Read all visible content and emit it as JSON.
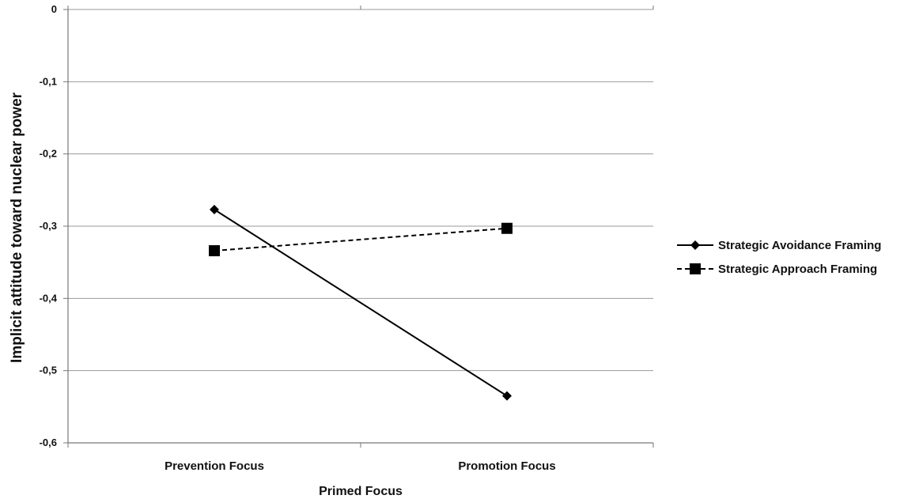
{
  "chart_data": {
    "type": "line",
    "title": "",
    "xlabel": "Primed Focus",
    "ylabel": "Implicit attitude toward nuclear power",
    "categories": [
      "Prevention Focus",
      "Promotion Focus"
    ],
    "ylim": [
      -0.6,
      0
    ],
    "yticks": [
      0,
      -0.1,
      -0.2,
      -0.3,
      -0.4,
      -0.5,
      -0.6
    ],
    "ytick_labels": [
      "0",
      "-0,1",
      "-0,2",
      "-0,3",
      "-0,4",
      "-0,5",
      "-0,6"
    ],
    "grid": "horizontal",
    "legend_position": "right",
    "series": [
      {
        "name": "Strategic Avoidance Framing",
        "values": [
          -0.277,
          -0.535
        ],
        "marker": "diamond",
        "line_style": "solid",
        "color": "#000000"
      },
      {
        "name": "Strategic Approach Framing",
        "values": [
          -0.334,
          -0.303
        ],
        "marker": "square",
        "line_style": "dashed",
        "color": "#000000"
      }
    ]
  }
}
